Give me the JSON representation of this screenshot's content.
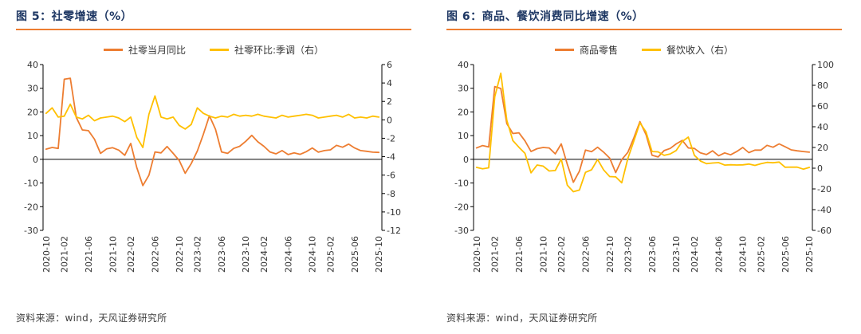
{
  "colors": {
    "orange": "#ED7D31",
    "gold": "#FFC000",
    "title_text": "#1F3864",
    "title_rule": "#ED7D31",
    "axis_line": "#000000",
    "tick_text": "#333333"
  },
  "panels": [
    {
      "title": "图 5：社零增速（%）",
      "source": "资料来源：wind，天风证券研究所"
    },
    {
      "title": "图 6：商品、餐饮消费同比增速（%）",
      "source": "资料来源：wind，天风证券研究所"
    }
  ],
  "chart_data": [
    {
      "type": "line",
      "title": "图 5：社零增速（%）",
      "grid": false,
      "legend_position": "top",
      "left_ylim": [
        -30,
        40
      ],
      "right_ylim": [
        -12,
        6
      ],
      "left_ticks": [
        40,
        30,
        20,
        10,
        0,
        -10,
        -20,
        -30
      ],
      "right_ticks": [
        6,
        4,
        2,
        0,
        -2,
        -4,
        -6,
        -8,
        -10,
        -12
      ],
      "x": [
        "2020-10",
        "2020-11",
        "2020-12",
        "2021-02",
        "2021-03",
        "2021-04",
        "2021-05",
        "2021-06",
        "2021-07",
        "2021-08",
        "2021-09",
        "2021-10",
        "2021-11",
        "2021-12",
        "2022-02",
        "2022-03",
        "2022-04",
        "2022-05",
        "2022-06",
        "2022-07",
        "2022-08",
        "2022-09",
        "2022-10",
        "2022-11",
        "2022-12",
        "2023-02",
        "2023-03",
        "2023-04",
        "2023-05",
        "2023-06",
        "2023-07",
        "2023-08",
        "2023-09",
        "2023-10",
        "2023-11",
        "2023-12",
        "2024-02",
        "2024-03",
        "2024-04",
        "2024-05",
        "2024-06",
        "2024-07",
        "2024-08",
        "2024-09",
        "2024-10",
        "2024-11",
        "2024-12",
        "2025-02",
        "2025-03",
        "2025-04",
        "2025-05",
        "2025-06",
        "2025-07",
        "2025-08",
        "2025-09",
        "2025-10"
      ],
      "x_tick_labels": [
        "2020-10",
        "2021-02",
        "2021-06",
        "2021-10",
        "2022-02",
        "2022-06",
        "2022-10",
        "2023-02",
        "2023-06",
        "2023-10",
        "2024-02",
        "2024-06",
        "2024-10",
        "2025-02",
        "2025-06",
        "2025-10"
      ],
      "series": [
        {
          "name": "社零当月同比",
          "axis": "left",
          "color": "#ED7D31",
          "values": [
            4.3,
            5.0,
            4.6,
            33.8,
            34.2,
            17.7,
            12.4,
            12.1,
            8.5,
            2.5,
            4.4,
            4.9,
            3.9,
            1.7,
            6.7,
            -3.5,
            -11.1,
            -6.7,
            3.1,
            2.7,
            5.4,
            2.5,
            -0.5,
            -5.9,
            -1.8,
            3.5,
            10.6,
            18.4,
            12.7,
            3.1,
            2.5,
            4.6,
            5.5,
            7.6,
            10.1,
            7.4,
            5.5,
            3.1,
            2.3,
            3.7,
            2.0,
            2.7,
            2.1,
            3.2,
            4.8,
            3.0,
            3.7,
            4.0,
            5.9,
            5.1,
            6.4,
            4.8,
            3.7,
            3.4,
            3.0,
            2.9
          ]
        },
        {
          "name": "社零环比:季调（右）",
          "axis": "right",
          "color": "#FFC000",
          "values": [
            0.7,
            1.3,
            0.3,
            0.4,
            1.7,
            0.3,
            0.1,
            0.5,
            -0.1,
            0.2,
            0.3,
            0.4,
            0.2,
            -0.2,
            0.3,
            -1.9,
            -3.0,
            0.6,
            2.6,
            0.3,
            0.1,
            0.3,
            -0.6,
            -1.0,
            -0.5,
            1.3,
            0.7,
            0.4,
            0.2,
            0.4,
            0.3,
            0.6,
            0.4,
            0.5,
            0.4,
            0.6,
            0.4,
            0.3,
            0.2,
            0.5,
            0.3,
            0.4,
            0.5,
            0.6,
            0.5,
            0.2,
            0.3,
            0.4,
            0.5,
            0.3,
            0.6,
            0.2,
            0.3,
            0.2,
            0.4,
            0.3
          ]
        }
      ]
    },
    {
      "type": "line",
      "title": "图 6：商品、餐饮消费同比增速（%）",
      "grid": false,
      "legend_position": "top",
      "left_ylim": [
        -30,
        40
      ],
      "right_ylim": [
        -60,
        100
      ],
      "left_ticks": [
        40,
        30,
        20,
        10,
        0,
        -10,
        -20,
        -30
      ],
      "right_ticks": [
        100,
        80,
        60,
        40,
        20,
        0,
        -20,
        -40,
        -60
      ],
      "x": [
        "2020-10",
        "2020-11",
        "2020-12",
        "2021-02",
        "2021-03",
        "2021-04",
        "2021-05",
        "2021-06",
        "2021-07",
        "2021-08",
        "2021-09",
        "2021-10",
        "2021-11",
        "2021-12",
        "2022-02",
        "2022-03",
        "2022-04",
        "2022-05",
        "2022-06",
        "2022-07",
        "2022-08",
        "2022-09",
        "2022-10",
        "2022-11",
        "2022-12",
        "2023-02",
        "2023-03",
        "2023-04",
        "2023-05",
        "2023-06",
        "2023-07",
        "2023-08",
        "2023-09",
        "2023-10",
        "2023-11",
        "2023-12",
        "2024-02",
        "2024-03",
        "2024-04",
        "2024-05",
        "2024-06",
        "2024-07",
        "2024-08",
        "2024-09",
        "2024-10",
        "2024-11",
        "2024-12",
        "2025-02",
        "2025-03",
        "2025-04",
        "2025-05",
        "2025-06",
        "2025-07",
        "2025-08",
        "2025-09",
        "2025-10"
      ],
      "x_tick_labels": [
        "2020-10",
        "2021-02",
        "2021-06",
        "2021-10",
        "2022-02",
        "2022-06",
        "2022-10",
        "2023-02",
        "2023-06",
        "2023-10",
        "2024-02",
        "2024-06",
        "2024-10",
        "2025-02",
        "2025-06",
        "2025-10"
      ],
      "series": [
        {
          "name": "商品零售",
          "axis": "left",
          "color": "#ED7D31",
          "values": [
            4.8,
            5.8,
            5.2,
            30.7,
            29.9,
            15.1,
            10.9,
            11.2,
            7.8,
            3.3,
            4.5,
            5.0,
            4.8,
            2.3,
            6.5,
            -2.1,
            -9.7,
            -5.0,
            3.9,
            3.2,
            5.1,
            3.0,
            0.5,
            -5.6,
            -0.1,
            2.9,
            9.1,
            15.9,
            10.5,
            1.7,
            1.0,
            3.7,
            4.6,
            6.5,
            8.0,
            4.8,
            4.6,
            2.7,
            2.0,
            3.6,
            1.5,
            2.7,
            1.9,
            3.3,
            5.0,
            2.8,
            3.9,
            3.9,
            5.9,
            5.1,
            6.5,
            5.3,
            4.0,
            3.6,
            3.3,
            3.0
          ]
        },
        {
          "name": "餐饮收入（右）",
          "axis": "right",
          "color": "#FFC000",
          "values": [
            0.8,
            -0.6,
            0.4,
            68.9,
            91.6,
            46.4,
            26.6,
            20.2,
            14.3,
            -4.5,
            3.1,
            2.0,
            -2.7,
            -2.2,
            8.9,
            -16.4,
            -22.7,
            -21.1,
            -4.0,
            -1.5,
            8.4,
            -1.7,
            -8.1,
            -8.4,
            -14.1,
            9.2,
            26.3,
            43.8,
            35.1,
            16.1,
            15.8,
            12.4,
            13.8,
            17.1,
            25.8,
            30.0,
            12.5,
            6.9,
            4.4,
            5.0,
            5.4,
            3.0,
            3.3,
            3.1,
            3.2,
            4.0,
            2.7,
            4.3,
            5.6,
            5.2,
            5.9,
            0.9,
            1.1,
            1.0,
            -0.9,
            0.8
          ]
        }
      ]
    }
  ]
}
